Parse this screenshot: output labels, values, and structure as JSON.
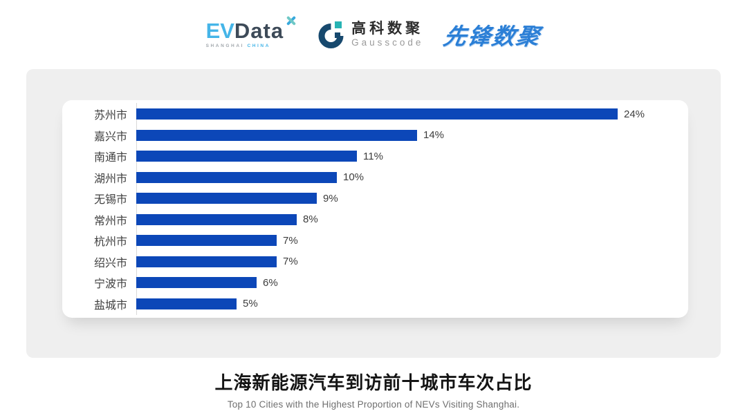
{
  "header": {
    "evdata": {
      "ev": "EV",
      "data": "Data",
      "sub_left": "SHANGHAI",
      "sub_right": "CHINA"
    },
    "gausscode": {
      "cn": "高科数聚",
      "en": "Gausscode"
    },
    "xianfeng": {
      "text": "先锋数聚"
    }
  },
  "chart_data": {
    "type": "bar",
    "orientation": "horizontal",
    "title": "上海新能源汽车到访前十城市车次占比",
    "subtitle": "Top 10 Cities with the Highest Proportion of  NEVs Visiting Shanghai.",
    "categories": [
      "苏州市",
      "嘉兴市",
      "南通市",
      "湖州市",
      "无锡市",
      "常州市",
      "杭州市",
      "绍兴市",
      "宁波市",
      "盐城市"
    ],
    "values": [
      24,
      14,
      11,
      10,
      9,
      8,
      7,
      7,
      6,
      5
    ],
    "value_labels": [
      "24%",
      "14%",
      "11%",
      "10%",
      "9%",
      "8%",
      "7%",
      "7%",
      "6%",
      "5%"
    ],
    "unit": "%",
    "xlim": [
      0,
      24
    ],
    "grid": false,
    "legend": "none",
    "bar_color": "#0C47B8",
    "axis_line_color": "#D9D9D9"
  },
  "caption": {
    "title": "上海新能源汽车到访前十城市车次占比",
    "subtitle": "Top 10 Cities with the Highest Proportion of  NEVs Visiting Shanghai."
  },
  "colors": {
    "panel_bg": "#EFEFEF",
    "card_bg": "#FFFFFF",
    "bar_blue": "#0C47B8",
    "evdata_blue": "#45B5E8",
    "evdata_dark": "#3D4A58",
    "gauss_navy": "#17496E",
    "gauss_teal": "#27B3B4",
    "xianfeng_blue": "#2B7FD6"
  }
}
